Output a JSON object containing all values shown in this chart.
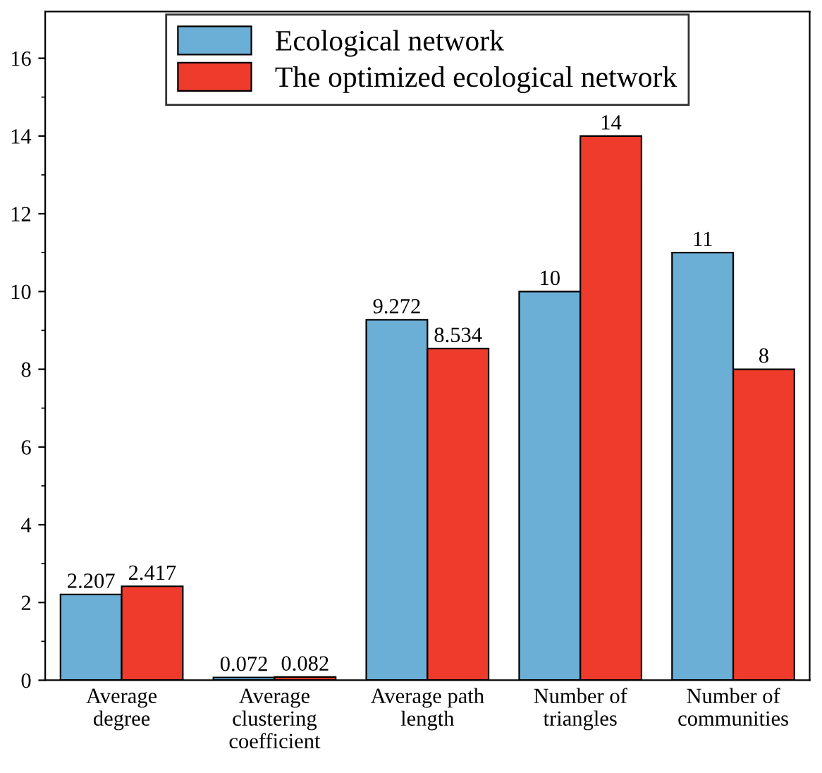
{
  "chart_data": {
    "type": "bar",
    "categories": [
      "Average\ndegree",
      "Average\nclustering\ncoefficient",
      "Average path\nlength",
      "Number of\ntriangles",
      "Number of\ncommunities"
    ],
    "series": [
      {
        "name": "Ecological network",
        "color": "#6baed6",
        "values": [
          2.207,
          0.072,
          9.272,
          10,
          11
        ]
      },
      {
        "name": "The optimized ecological network",
        "color": "#ee3b2b",
        "values": [
          2.417,
          0.082,
          8.534,
          14,
          8
        ]
      }
    ],
    "ylim": [
      0,
      17.2
    ],
    "yticks": [
      0,
      2,
      4,
      6,
      8,
      10,
      12,
      14,
      16
    ],
    "data_labels": true,
    "legend": "top",
    "grid": false
  }
}
